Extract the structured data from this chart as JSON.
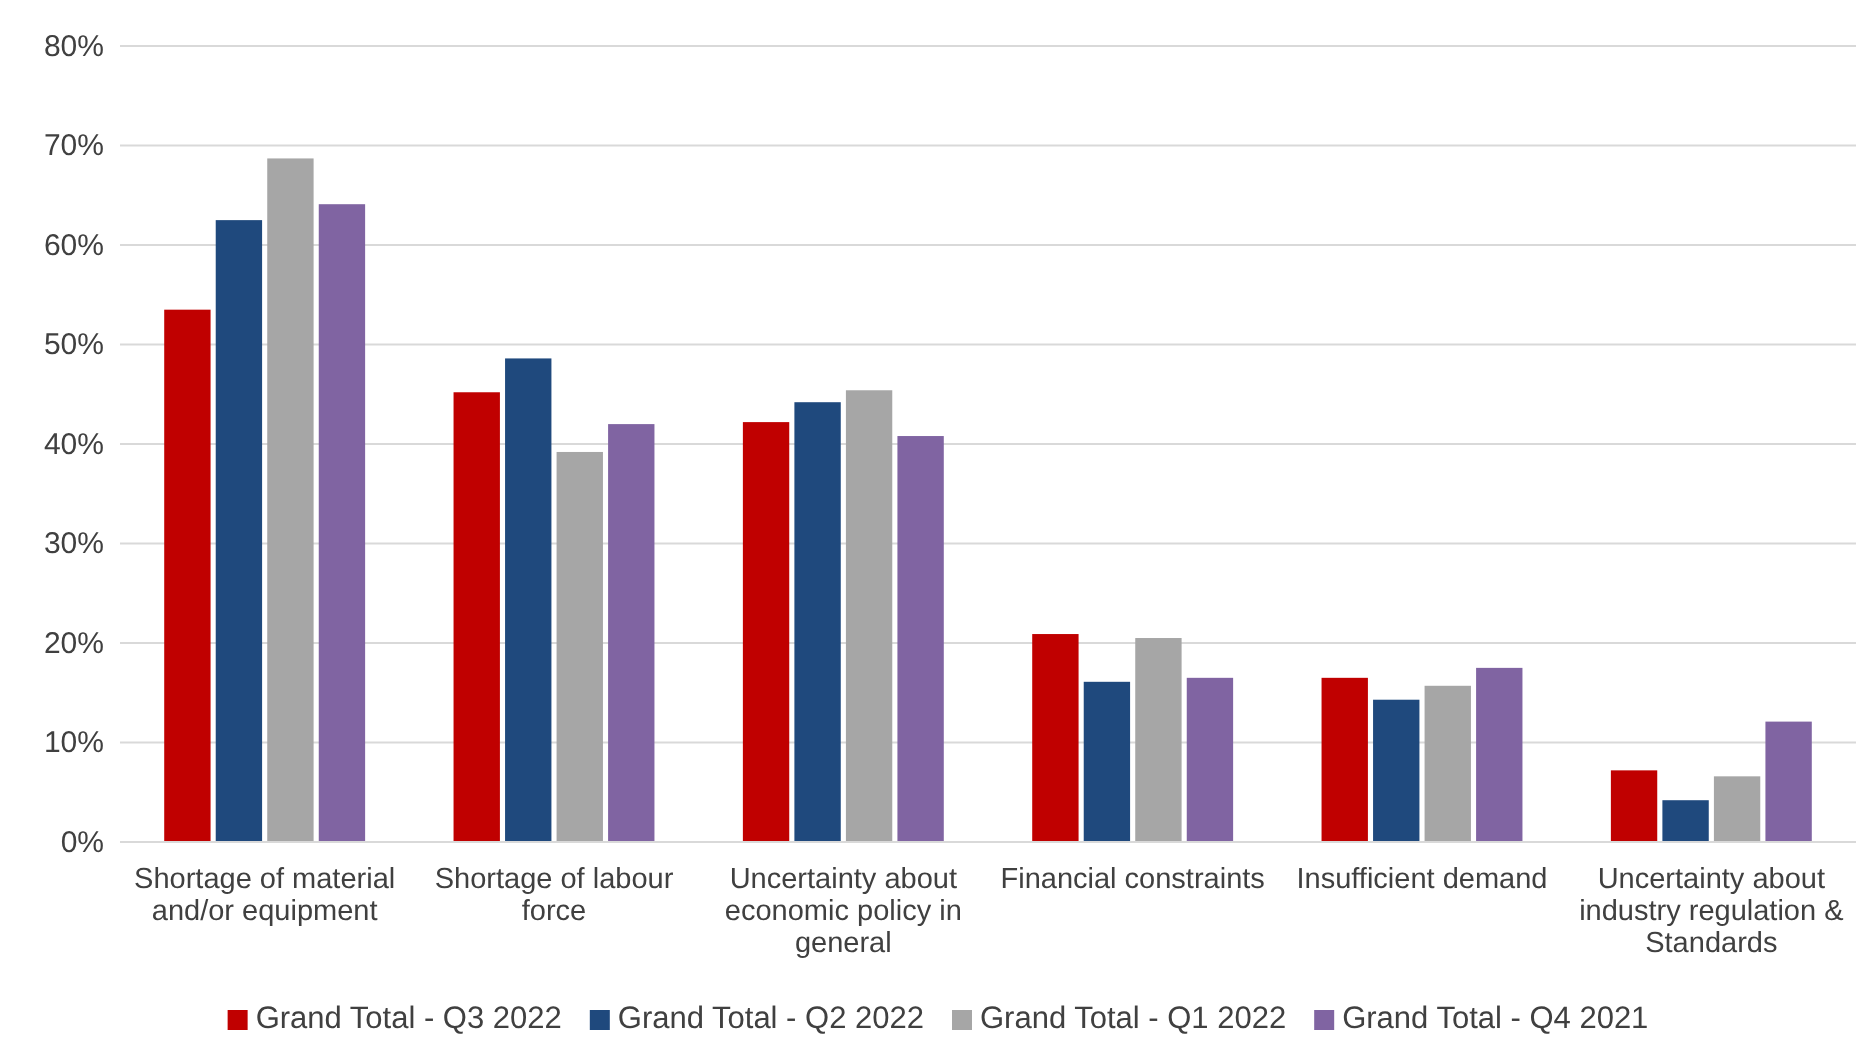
{
  "chart_data": {
    "type": "bar",
    "categories": [
      "Shortage of material and/or equipment",
      "Shortage of labour force",
      "Uncertainty about economic policy in general",
      "Financial constraints",
      "Insufficient demand",
      "Uncertainty about industry regulation & Standards"
    ],
    "series": [
      {
        "name": "Grand Total - Q3 2022",
        "color": "#c00000",
        "values": [
          53.5,
          45.2,
          42.2,
          20.9,
          16.5,
          7.2
        ]
      },
      {
        "name": "Grand Total - Q2 2022",
        "color": "#1f497d",
        "values": [
          62.5,
          48.6,
          44.2,
          16.1,
          14.3,
          4.2
        ]
      },
      {
        "name": "Grand Total - Q1 2022",
        "color": "#a6a6a6",
        "values": [
          68.7,
          39.2,
          45.4,
          20.5,
          15.7,
          6.6
        ]
      },
      {
        "name": "Grand Total - Q4 2021",
        "color": "#8064a2",
        "values": [
          64.1,
          42.0,
          40.8,
          16.5,
          17.5,
          12.1
        ]
      }
    ],
    "ylim": [
      0,
      80
    ],
    "yticks": [
      {
        "value": 0,
        "label": "0%"
      },
      {
        "value": 10,
        "label": "10%"
      },
      {
        "value": 20,
        "label": "20%"
      },
      {
        "value": 30,
        "label": "30%"
      },
      {
        "value": 40,
        "label": "40%"
      },
      {
        "value": 50,
        "label": "50%"
      },
      {
        "value": 60,
        "label": "60%"
      },
      {
        "value": 70,
        "label": "70%"
      },
      {
        "value": 80,
        "label": "80%"
      }
    ],
    "grid": "y",
    "legend": "bottom"
  }
}
